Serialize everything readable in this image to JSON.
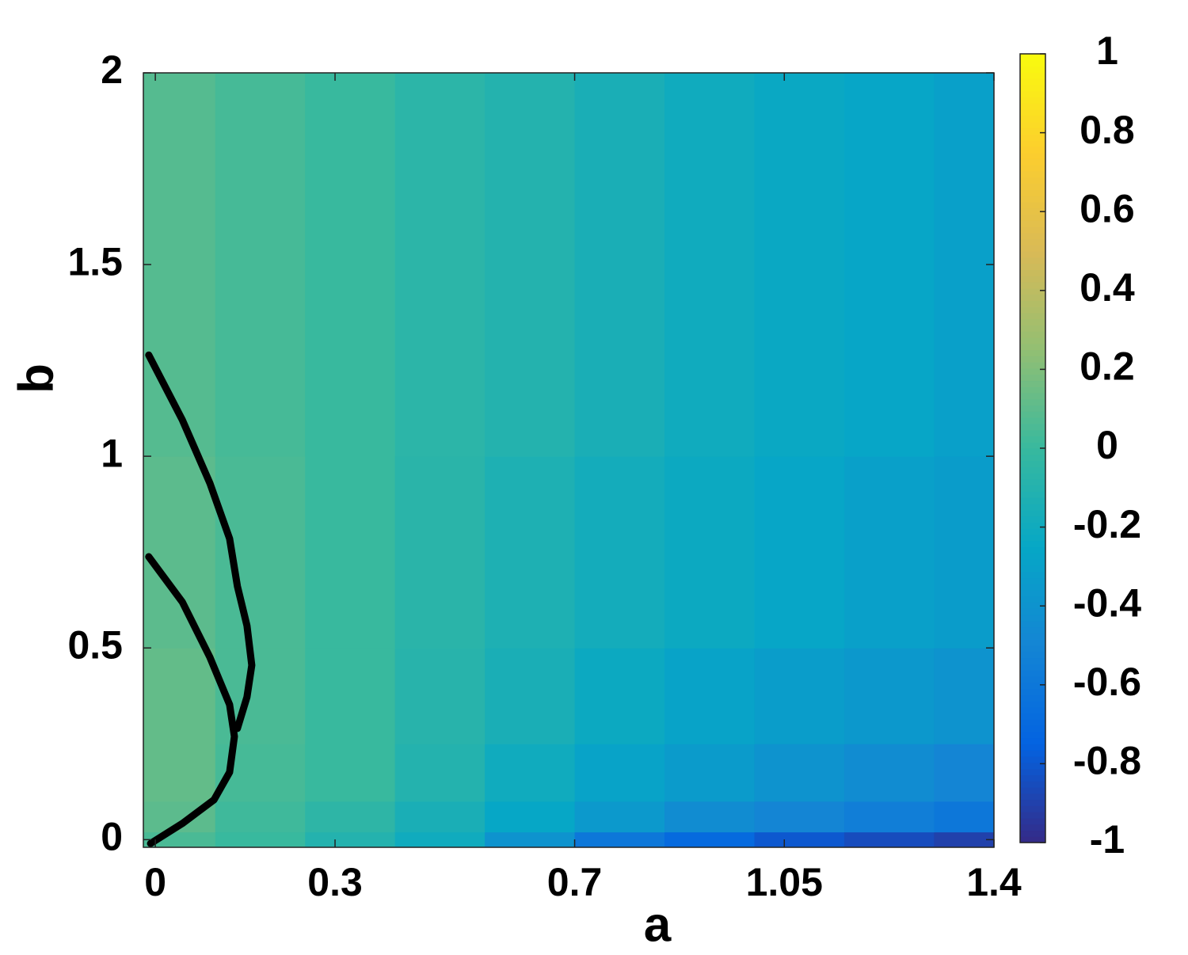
{
  "chart_data": {
    "type": "heatmap",
    "xlabel": "a",
    "ylabel": "b",
    "xlim": [
      -0.02,
      1.4
    ],
    "ylim": [
      -0.02,
      2
    ],
    "xticks": [
      0,
      0.3,
      0.7,
      1.05,
      1.4
    ],
    "yticks": [
      0,
      0.5,
      1,
      1.5,
      2
    ],
    "colormap": "parula",
    "clim": [
      -1,
      1
    ],
    "cticks": [
      -1,
      -0.8,
      -0.6,
      -0.4,
      -0.2,
      0,
      0.2,
      0.4,
      0.6,
      0.8,
      1
    ],
    "x_edges": [
      -0.02,
      0.1,
      0.25,
      0.4,
      0.55,
      0.7,
      0.85,
      1.0,
      1.15,
      1.3,
      1.4
    ],
    "y_edges": [
      -0.02,
      0.02,
      0.1,
      0.25,
      0.5,
      1,
      2
    ],
    "z": [
      [
        0.05,
        0,
        -0.1,
        -0.2,
        -0.4,
        -0.6,
        -0.7,
        -0.8,
        -0.85,
        -0.9
      ],
      [
        0.1,
        0.02,
        -0.05,
        -0.15,
        -0.25,
        -0.35,
        -0.45,
        -0.5,
        -0.55,
        -0.6
      ],
      [
        0.12,
        0.04,
        0,
        -0.1,
        -0.2,
        -0.28,
        -0.34,
        -0.4,
        -0.45,
        -0.5
      ],
      [
        0.12,
        0.05,
        0,
        -0.08,
        -0.15,
        -0.22,
        -0.28,
        -0.32,
        -0.36,
        -0.4
      ],
      [
        0.1,
        0.05,
        0,
        -0.07,
        -0.13,
        -0.18,
        -0.22,
        -0.26,
        -0.3,
        -0.33
      ],
      [
        0.08,
        0.04,
        0,
        -0.06,
        -0.1,
        -0.15,
        -0.2,
        -0.23,
        -0.26,
        -0.3
      ]
    ],
    "curves": [
      {
        "color": "#000000",
        "x": [
          -0.011,
          0.045,
          0.091,
          0.124,
          0.137,
          0.153,
          0.161,
          0.153,
          0.137
        ],
        "y": [
          1.264,
          1.095,
          0.93,
          0.785,
          0.661,
          0.558,
          0.455,
          0.372,
          0.29
        ]
      },
      {
        "color": "#000000",
        "x": [
          -0.011,
          0.045,
          0.091,
          0.124,
          0.132,
          0.124,
          0.098,
          0.045,
          -0.008
        ],
        "y": [
          0.738,
          0.62,
          0.476,
          0.352,
          0.269,
          0.176,
          0.104,
          0.042,
          -0.01
        ]
      }
    ]
  }
}
